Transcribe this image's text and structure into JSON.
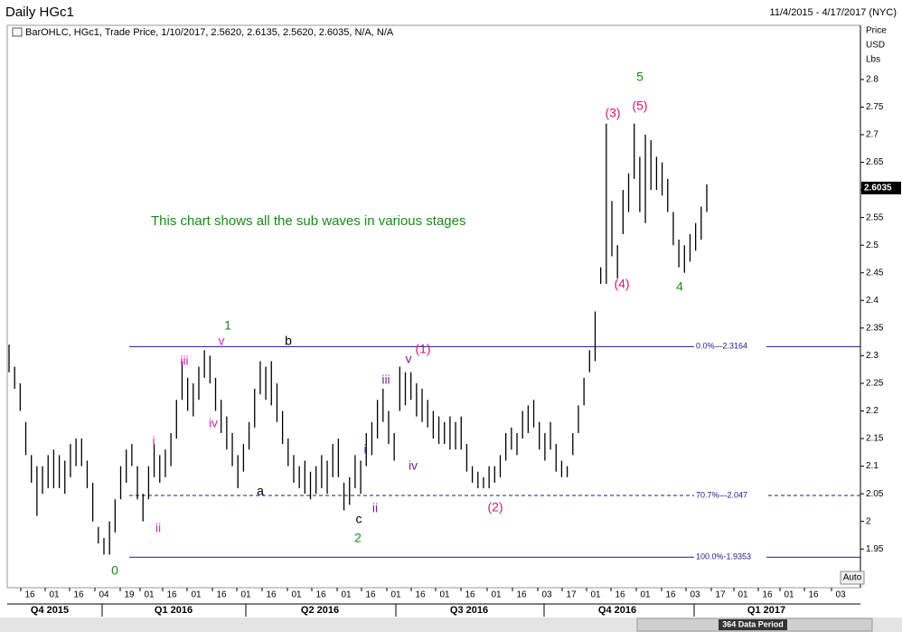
{
  "header": {
    "title": "Daily HGc1",
    "range": "11/4/2015 - 4/17/2017 (NYC)"
  },
  "chart_data": {
    "type": "ohlc",
    "legend_text": "BarOHLC, HGc1, Trade Price, 1/10/2017, 2.5620, 2.6135, 2.5620, 2.6035, N/A, N/A",
    "axis_units": [
      "Price",
      "USD",
      "Lbs"
    ],
    "ylim": [
      1.88,
      2.898
    ],
    "yticks": [
      1.95,
      2,
      2.05,
      2.1,
      2.15,
      2.2,
      2.25,
      2.3,
      2.35,
      2.4,
      2.45,
      2.5,
      2.55,
      2.6,
      2.65,
      2.7,
      2.75,
      2.8
    ],
    "high": [
      2.32,
      2.28,
      2.25,
      2.18,
      2.12,
      2.1,
      2.1,
      2.12,
      2.13,
      2.12,
      2.11,
      2.14,
      2.15,
      2.15,
      2.11,
      2.07,
      1.99,
      1.97,
      2.0,
      2.04,
      2.1,
      2.13,
      2.14,
      2.1,
      2.05,
      2.1,
      2.14,
      2.12,
      2.13,
      2.16,
      2.22,
      2.29,
      2.26,
      2.25,
      2.28,
      2.31,
      2.3,
      2.26,
      2.22,
      2.19,
      2.16,
      2.12,
      2.14,
      2.18,
      2.24,
      2.29,
      2.28,
      2.29,
      2.25,
      2.2,
      2.15,
      2.12,
      2.1,
      2.11,
      2.09,
      2.1,
      2.12,
      2.11,
      2.14,
      2.15,
      2.07,
      2.08,
      2.12,
      2.11,
      2.16,
      2.18,
      2.22,
      2.24,
      2.2,
      2.16,
      2.28,
      2.27,
      2.27,
      2.25,
      2.24,
      2.22,
      2.2,
      2.19,
      2.18,
      2.19,
      2.18,
      2.19,
      2.14,
      2.1,
      2.09,
      2.08,
      2.1,
      2.1,
      2.12,
      2.16,
      2.17,
      2.16,
      2.2,
      2.21,
      2.22,
      2.18,
      2.16,
      2.18,
      2.14,
      2.11,
      2.1,
      2.16,
      2.21,
      2.26,
      2.31,
      2.38,
      2.46,
      2.72,
      2.58,
      2.5,
      2.6,
      2.63,
      2.72,
      2.66,
      2.7,
      2.69,
      2.66,
      2.65,
      2.62,
      2.56,
      2.51,
      2.5,
      2.52,
      2.54,
      2.57,
      2.61
    ],
    "low": [
      2.27,
      2.24,
      2.2,
      2.12,
      2.07,
      2.01,
      2.05,
      2.06,
      2.06,
      2.06,
      2.05,
      2.08,
      2.1,
      2.1,
      2.06,
      2.0,
      1.96,
      1.94,
      1.94,
      1.98,
      2.04,
      2.07,
      2.1,
      2.04,
      2.0,
      2.04,
      2.08,
      2.07,
      2.08,
      2.1,
      2.15,
      2.22,
      2.2,
      2.19,
      2.22,
      2.26,
      2.25,
      2.2,
      2.16,
      2.13,
      2.1,
      2.06,
      2.09,
      2.13,
      2.17,
      2.23,
      2.22,
      2.21,
      2.18,
      2.14,
      2.1,
      2.07,
      2.06,
      2.05,
      2.04,
      2.05,
      2.06,
      2.05,
      2.08,
      2.08,
      2.02,
      2.03,
      2.06,
      2.05,
      2.1,
      2.12,
      2.15,
      2.18,
      2.14,
      2.11,
      2.2,
      2.21,
      2.22,
      2.19,
      2.18,
      2.17,
      2.15,
      2.14,
      2.14,
      2.13,
      2.13,
      2.13,
      2.09,
      2.07,
      2.06,
      2.06,
      2.06,
      2.07,
      2.08,
      2.11,
      2.13,
      2.12,
      2.15,
      2.16,
      2.17,
      2.13,
      2.11,
      2.13,
      2.09,
      2.08,
      2.08,
      2.12,
      2.16,
      2.21,
      2.27,
      2.29,
      2.43,
      2.43,
      2.48,
      2.44,
      2.52,
      2.56,
      2.62,
      2.56,
      2.54,
      2.6,
      2.6,
      2.59,
      2.56,
      2.5,
      2.46,
      2.45,
      2.47,
      2.49,
      2.51,
      2.56
    ],
    "bar_color": "#000000",
    "last_price": 2.6035,
    "reference_lines": [
      {
        "value": 2.3164,
        "label": "0.0%—2.3164",
        "style": "solid"
      },
      {
        "value": 2.047,
        "label": "70.7%—2.047",
        "style": "dashed"
      },
      {
        "value": 1.9353,
        "label": "100.0%-1.9353",
        "style": "solid"
      }
    ],
    "reference_color": "#1a1a8c",
    "annotation": {
      "text": "This chart shows all the sub waves in various stages",
      "color": "#1a8a1a"
    },
    "wave_labels": [
      {
        "text": "0",
        "color": "#1a8a1a"
      },
      {
        "text": "1",
        "color": "#1a8a1a"
      },
      {
        "text": "2",
        "color": "#1a8a1a"
      },
      {
        "text": "5",
        "color": "#1a8a1a"
      },
      {
        "text": "4",
        "color": "#1a8a1a"
      },
      {
        "text": "(3)",
        "color": "#d6137a"
      },
      {
        "text": "(5)",
        "color": "#d6137a"
      },
      {
        "text": "(4)",
        "color": "#d6137a"
      },
      {
        "text": "(1)",
        "color": "#d6137a"
      },
      {
        "text": "(2)",
        "color": "#d6137a"
      },
      {
        "text": "i",
        "color": "#e020c0"
      },
      {
        "text": "ii",
        "color": "#e020c0"
      },
      {
        "text": "iii",
        "color": "#e020c0"
      },
      {
        "text": "iv",
        "color": "#e020c0"
      },
      {
        "text": "v",
        "color": "#e020c0"
      },
      {
        "text": "a",
        "color": "#000000"
      },
      {
        "text": "b",
        "color": "#000000"
      },
      {
        "text": "c",
        "color": "#000000"
      },
      {
        "text": "i",
        "color": "#7a1fa2"
      },
      {
        "text": "ii",
        "color": "#7a1fa2"
      },
      {
        "text": "iii",
        "color": "#7a1fa2"
      },
      {
        "text": "iv",
        "color": "#7a1fa2"
      },
      {
        "text": "v",
        "color": "#7a1fa2"
      }
    ],
    "x_day_labels": [
      "16",
      "01",
      "16",
      "04",
      "19",
      "01",
      "16",
      "01",
      "16",
      "01",
      "16",
      "01",
      "16",
      "01",
      "16",
      "01",
      "16",
      "01",
      "16",
      "01",
      "16",
      "03",
      "17",
      "01",
      "16",
      "01",
      "16",
      "03",
      "17",
      "01",
      "16",
      "01",
      "16",
      "03"
    ],
    "x_quarter_labels": [
      "Q4 2015",
      "Q1 2016",
      "Q2 2016",
      "Q3 2016",
      "Q4 2016",
      "Q1 2017"
    ],
    "data_period": "364 Data Period",
    "auto_button": "Auto"
  }
}
